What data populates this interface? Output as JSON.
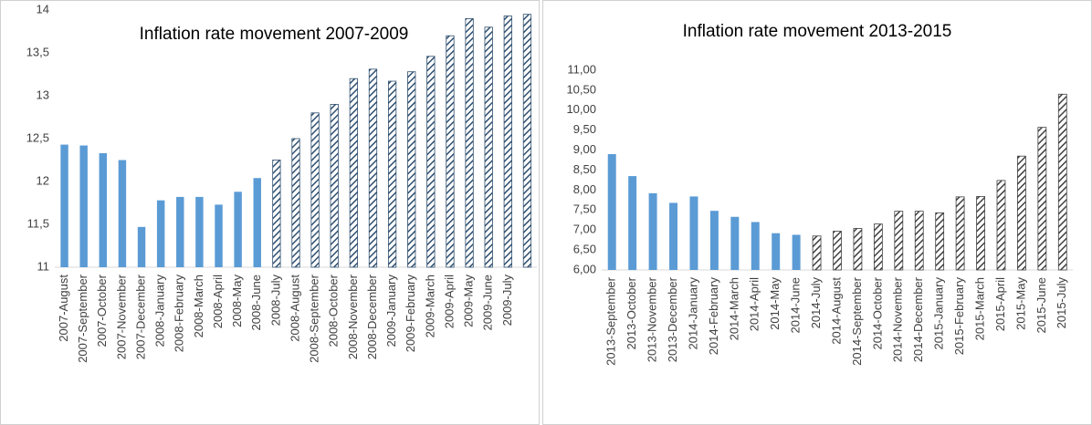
{
  "chart_data": [
    {
      "type": "bar",
      "title": "Inflation rate movement 2007-2009",
      "categories": [
        "2007-August",
        "2007-September",
        "2007-October",
        "2007-November",
        "2007-December",
        "2008-January",
        "2008-February",
        "2008-March",
        "2008-April",
        "2008-May",
        "2008-June",
        "2008-July",
        "2008-August",
        "2008-September",
        "2008-October",
        "2008-November",
        "2008-December",
        "2009-January",
        "2009-February",
        "2009-March",
        "2009-April",
        "2009-May",
        "2009-June",
        "2009-July",
        null
      ],
      "series": [
        {
          "color": "#5b9bd5",
          "values": [
            12.43,
            12.42,
            12.33,
            12.25,
            11.47,
            11.78,
            11.82,
            11.82,
            11.73,
            11.88,
            12.04,
            null,
            null,
            null,
            null,
            null,
            null,
            null,
            null,
            null,
            null,
            null,
            null,
            null,
            null
          ]
        },
        {
          "color": "#2f4f6f",
          "pattern": "hatch",
          "values": [
            null,
            null,
            null,
            null,
            null,
            null,
            null,
            null,
            null,
            null,
            null,
            12.25,
            12.5,
            12.8,
            12.9,
            13.2,
            13.31,
            13.17,
            13.28,
            13.46,
            13.7,
            13.9,
            13.8,
            13.93,
            13.95
          ]
        }
      ],
      "ylim": [
        11,
        14
      ],
      "yticks": [
        11,
        {
          "value": 11.5,
          "label": "11,5"
        },
        12,
        {
          "value": 12.5,
          "label": "12,5"
        },
        13,
        {
          "value": 13.5,
          "label": "13,5"
        },
        14
      ]
    },
    {
      "type": "bar",
      "title": "Inflation rate movement 2013-2015",
      "categories": [
        "2013-September",
        "2013-October",
        "2013-November",
        "2013-December",
        "2014-January",
        "2014-February",
        "2014-March",
        "2014-April",
        "2014-May",
        "2014-June",
        "2014-July",
        "2014-August",
        "2014-September",
        "2014-October",
        "2014-November",
        "2014-December",
        "2015-January",
        "2015-February",
        "2015-March",
        "2015-April",
        "2015-May",
        "2015-June",
        "2015-July"
      ],
      "series": [
        {
          "color": "#5b9bd5",
          "values": [
            8.9,
            8.35,
            7.92,
            7.68,
            7.84,
            7.48,
            7.33,
            7.2,
            6.92,
            6.88,
            null,
            null,
            null,
            null,
            null,
            null,
            null,
            null,
            null,
            null,
            null,
            null,
            null
          ]
        },
        {
          "color": "#404040",
          "pattern": "hatch",
          "values": [
            null,
            null,
            null,
            null,
            null,
            null,
            null,
            null,
            null,
            null,
            6.85,
            6.97,
            7.04,
            7.15,
            7.47,
            7.47,
            7.43,
            7.83,
            7.84,
            8.24,
            8.85,
            9.57,
            10.4
          ]
        }
      ],
      "ylim": [
        6,
        11
      ],
      "yticks": [
        {
          "value": 6,
          "label": "6,00"
        },
        {
          "value": 6.5,
          "label": "6,50"
        },
        {
          "value": 7,
          "label": "7,00"
        },
        {
          "value": 7.5,
          "label": "7,50"
        },
        {
          "value": 8,
          "label": "8,00"
        },
        {
          "value": 8.5,
          "label": "8,50"
        },
        {
          "value": 9,
          "label": "9,00"
        },
        {
          "value": 9.5,
          "label": "9,50"
        },
        {
          "value": 10,
          "label": "10,00"
        },
        {
          "value": 10.5,
          "label": "10,50"
        },
        {
          "value": 11,
          "label": "11,00"
        }
      ]
    }
  ]
}
